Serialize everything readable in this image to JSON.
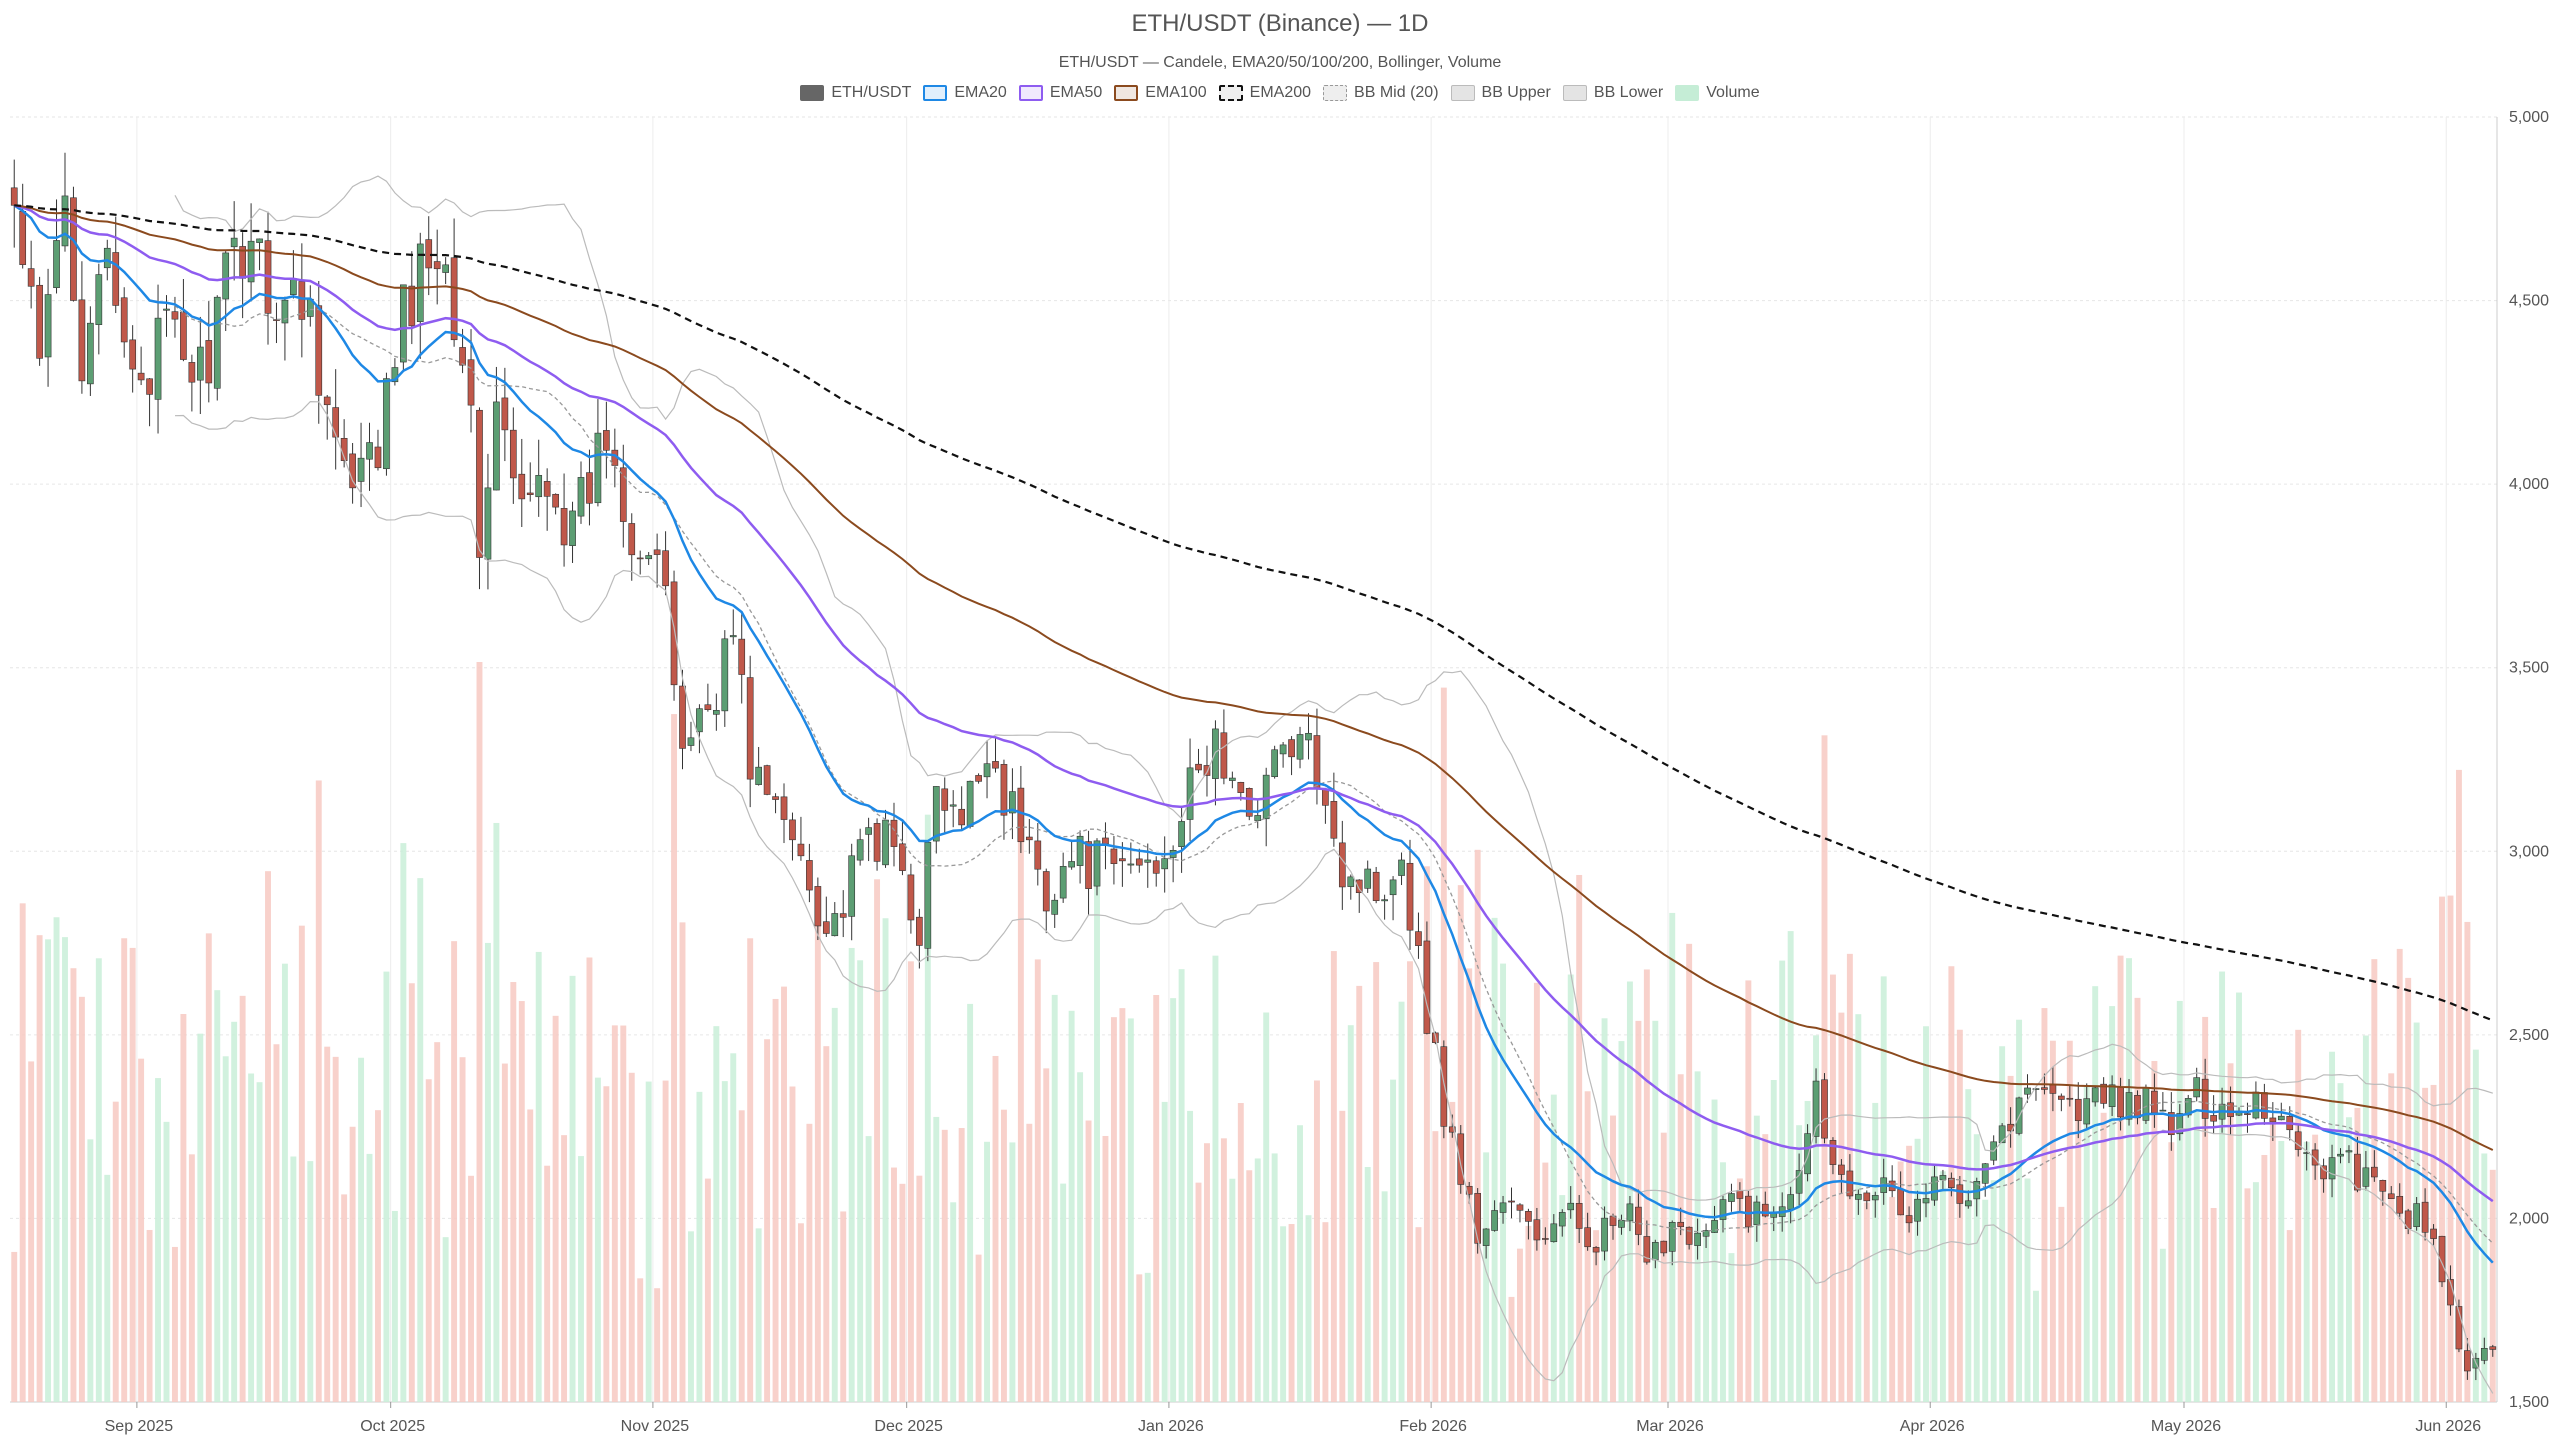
{
  "chart_data": {
    "type": "candlestick",
    "title": "ETH/USDT (Binance) — 1D",
    "subtitle": "ETH/USDT — Candele, EMA20/50/100/200, Bollinger, Volume",
    "legend": [
      {
        "name": "ETH/USDT",
        "color": "#666666",
        "style": "fill"
      },
      {
        "name": "EMA20",
        "color": "#1e88e5",
        "style": "line"
      },
      {
        "name": "EMA50",
        "color": "#8e5cf0",
        "style": "line"
      },
      {
        "name": "EMA100",
        "color": "#8b4a1e",
        "style": "line"
      },
      {
        "name": "EMA200",
        "color": "#111111",
        "style": "dashed"
      },
      {
        "name": "BB Mid (20)",
        "color": "#999999",
        "style": "dotted"
      },
      {
        "name": "BB Upper",
        "color": "#bbbbbb",
        "style": "thin"
      },
      {
        "name": "BB Lower",
        "color": "#bbbbbb",
        "style": "thin"
      },
      {
        "name": "Volume",
        "color": "#7fd8a4",
        "style": "fill"
      }
    ],
    "legend_placement": "top-center",
    "x_ticks": [
      "Sep 2025",
      "Oct 2025",
      "Nov 2025",
      "Dec 2025",
      "Jan 2026",
      "Feb 2026",
      "Mar 2026",
      "Apr 2026",
      "May 2026",
      "Jun 2026"
    ],
    "y_ticks": [
      "1,500",
      "2,000",
      "2,500",
      "3,000",
      "3,500",
      "4,000",
      "4,500",
      "5,000"
    ],
    "y_range": [
      1500,
      5000
    ],
    "x_range": [
      "2025-08-17",
      "2026-06-06"
    ],
    "grid": true,
    "colors": {
      "up": "#5c9e73",
      "down": "#c0584a",
      "vol_up": "#c9efd8",
      "vol_down": "#f7c9c2"
    },
    "close_anchors": [
      [
        "2025-08-17",
        4740
      ],
      [
        "2025-08-20",
        4300
      ],
      [
        "2025-08-23",
        4780
      ],
      [
        "2025-08-25",
        4380
      ],
      [
        "2025-08-27",
        4620
      ],
      [
        "2025-08-30",
        4350
      ],
      [
        "2025-09-02",
        4330
      ],
      [
        "2025-09-04",
        4400
      ],
      [
        "2025-09-08",
        4300
      ],
      [
        "2025-09-12",
        4600
      ],
      [
        "2025-09-14",
        4700
      ],
      [
        "2025-09-17",
        4500
      ],
      [
        "2025-09-21",
        4500
      ],
      [
        "2025-09-23",
        4200
      ],
      [
        "2025-09-26",
        3950
      ],
      [
        "2025-09-29",
        4100
      ],
      [
        "2025-10-02",
        4450
      ],
      [
        "2025-10-06",
        4700
      ],
      [
        "2025-10-09",
        4400
      ],
      [
        "2025-10-11",
        3850
      ],
      [
        "2025-10-13",
        4200
      ],
      [
        "2025-10-16",
        3900
      ],
      [
        "2025-10-19",
        4050
      ],
      [
        "2025-10-22",
        3850
      ],
      [
        "2025-10-26",
        4150
      ],
      [
        "2025-10-29",
        3900
      ],
      [
        "2025-11-01",
        3800
      ],
      [
        "2025-11-04",
        3300
      ],
      [
        "2025-11-07",
        3400
      ],
      [
        "2025-11-10",
        3600
      ],
      [
        "2025-11-12",
        3250
      ],
      [
        "2025-11-15",
        3100
      ],
      [
        "2025-11-18",
        3000
      ],
      [
        "2025-11-21",
        2800
      ],
      [
        "2025-11-23",
        2850
      ],
      [
        "2025-11-26",
        3050
      ],
      [
        "2025-11-29",
        3000
      ],
      [
        "2025-12-02",
        2800
      ],
      [
        "2025-12-04",
        3150
      ],
      [
        "2025-12-07",
        3050
      ],
      [
        "2025-12-10",
        3300
      ],
      [
        "2025-12-13",
        3100
      ],
      [
        "2025-12-17",
        2900
      ],
      [
        "2025-12-20",
        2980
      ],
      [
        "2025-12-25",
        2950
      ],
      [
        "2025-12-30",
        2980
      ],
      [
        "2026-01-03",
        3150
      ],
      [
        "2026-01-06",
        3300
      ],
      [
        "2026-01-09",
        3100
      ],
      [
        "2026-01-12",
        3200
      ],
      [
        "2026-01-15",
        3300
      ],
      [
        "2026-01-19",
        3200
      ],
      [
        "2026-01-21",
        2950
      ],
      [
        "2026-01-25",
        2900
      ],
      [
        "2026-01-28",
        3000
      ],
      [
        "2026-01-30",
        2700
      ],
      [
        "2026-02-02",
        2300
      ],
      [
        "2026-02-06",
        1950
      ],
      [
        "2026-02-09",
        2050
      ],
      [
        "2026-02-13",
        1950
      ],
      [
        "2026-02-17",
        2000
      ],
      [
        "2026-02-20",
        1950
      ],
      [
        "2026-02-24",
        2000
      ],
      [
        "2026-02-26",
        1850
      ],
      [
        "2026-03-01",
        2000
      ],
      [
        "2026-03-05",
        1950
      ],
      [
        "2026-03-08",
        2050
      ],
      [
        "2026-03-12",
        2000
      ],
      [
        "2026-03-15",
        2100
      ],
      [
        "2026-03-18",
        2350
      ],
      [
        "2026-03-21",
        2100
      ],
      [
        "2026-03-25",
        2100
      ],
      [
        "2026-03-29",
        2000
      ],
      [
        "2026-04-01",
        2100
      ],
      [
        "2026-04-04",
        2050
      ],
      [
        "2026-04-07",
        2200
      ],
      [
        "2026-04-11",
        2300
      ],
      [
        "2026-04-14",
        2400
      ],
      [
        "2026-04-17",
        2300
      ],
      [
        "2026-04-21",
        2320
      ],
      [
        "2026-04-25",
        2320
      ],
      [
        "2026-04-29",
        2250
      ],
      [
        "2026-05-02",
        2330
      ],
      [
        "2026-05-06",
        2300
      ],
      [
        "2026-05-09",
        2330
      ],
      [
        "2026-05-13",
        2250
      ],
      [
        "2026-05-16",
        2150
      ],
      [
        "2026-05-20",
        2150
      ],
      [
        "2026-05-24",
        2050
      ],
      [
        "2026-05-28",
        2000
      ],
      [
        "2026-05-31",
        1850
      ],
      [
        "2026-06-03",
        1550
      ],
      [
        "2026-06-06",
        1680
      ]
    ]
  }
}
